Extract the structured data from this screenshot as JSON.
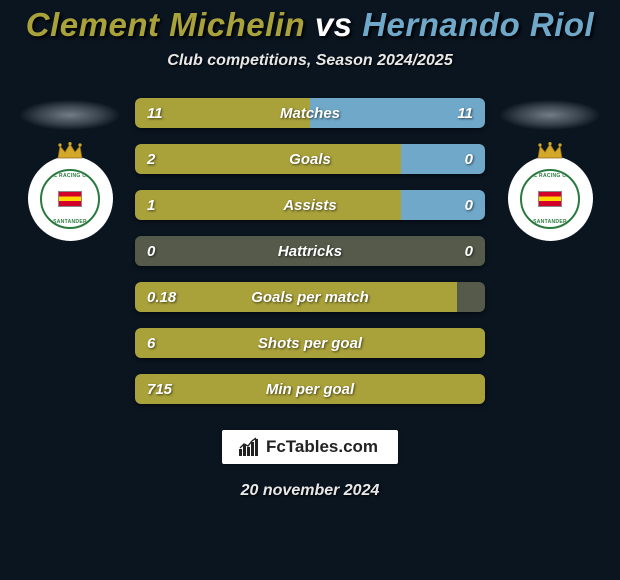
{
  "title": {
    "player1": "Clement Michelin",
    "vs": "vs",
    "player2": "Hernando Riol",
    "player1_color": "#a9a13a",
    "vs_color": "#ffffff",
    "player2_color": "#6fa8c9"
  },
  "subtitle": "Club competitions, Season 2024/2025",
  "colors": {
    "left_bar": "#a9a13a",
    "right_bar": "#6fa8c9",
    "bar_bg": "#555a4a",
    "page_bg": "#0a1520"
  },
  "club_badge": {
    "top_text": "REAL RACING CLUB",
    "bottom_text": "SANTANDER",
    "ring_color": "#2a7a3f",
    "crown_color": "#d4a82a"
  },
  "stats": [
    {
      "label": "Matches",
      "left_val": "11",
      "right_val": "11",
      "left_pct": 50,
      "right_pct": 50
    },
    {
      "label": "Goals",
      "left_val": "2",
      "right_val": "0",
      "left_pct": 76,
      "right_pct": 24
    },
    {
      "label": "Assists",
      "left_val": "1",
      "right_val": "0",
      "left_pct": 76,
      "right_pct": 24
    },
    {
      "label": "Hattricks",
      "left_val": "0",
      "right_val": "0",
      "left_pct": 0,
      "right_pct": 0
    },
    {
      "label": "Goals per match",
      "left_val": "0.18",
      "right_val": "",
      "left_pct": 92,
      "right_pct": 0
    },
    {
      "label": "Shots per goal",
      "left_val": "6",
      "right_val": "",
      "left_pct": 100,
      "right_pct": 0
    },
    {
      "label": "Min per goal",
      "left_val": "715",
      "right_val": "",
      "left_pct": 100,
      "right_pct": 0
    }
  ],
  "brand": "FcTables.com",
  "date": "20 november 2024"
}
